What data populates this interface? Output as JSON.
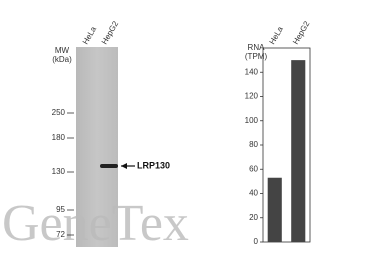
{
  "blot": {
    "lanes": [
      "HeLa",
      "HepG2"
    ],
    "mw_title": [
      "MW",
      "(kDa)"
    ],
    "mw_markers": [
      250,
      180,
      130,
      95,
      72
    ],
    "band_label": "LRP130",
    "watermark": "GeneTex"
  },
  "chart_data": {
    "type": "bar",
    "y_label": [
      "RNA",
      "(TPM)"
    ],
    "categories": [
      "HeLa",
      "HepG2"
    ],
    "values": [
      53,
      150
    ],
    "color": "#444444",
    "ylim": [
      0,
      160
    ],
    "yticks": [
      0,
      20,
      40,
      60,
      80,
      100,
      120,
      140
    ]
  }
}
